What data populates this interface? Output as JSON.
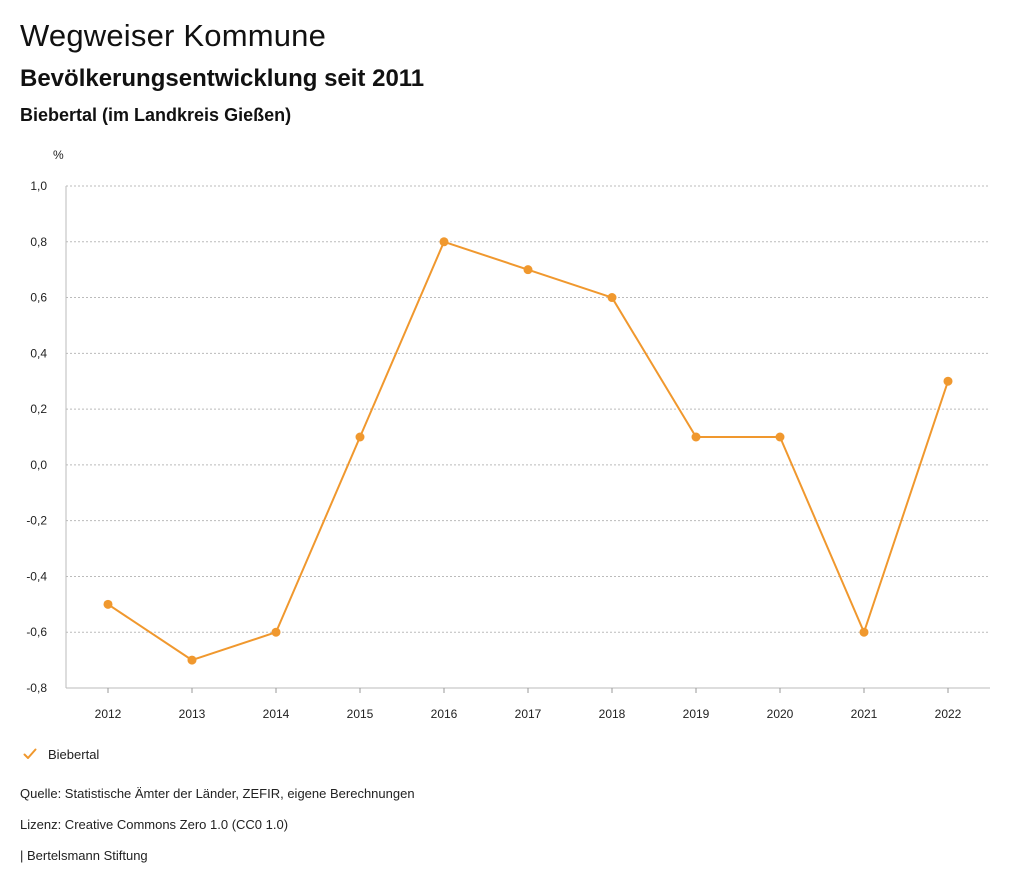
{
  "header": {
    "title": "Wegweiser Kommune",
    "subtitle": "Bevölkerungsentwicklung seit 2011",
    "region": "Biebertal (im Landkreis Gießen)"
  },
  "chart_data": {
    "type": "line",
    "title": "Bevölkerungsentwicklung seit 2011",
    "xlabel": "",
    "ylabel": "%",
    "x": [
      "2012",
      "2013",
      "2014",
      "2015",
      "2016",
      "2017",
      "2018",
      "2019",
      "2020",
      "2021",
      "2022"
    ],
    "series": [
      {
        "name": "Biebertal",
        "color": "#f0982e",
        "values": [
          -0.5,
          -0.7,
          -0.6,
          0.1,
          0.8,
          0.7,
          0.6,
          0.1,
          0.1,
          -0.6,
          0.3
        ]
      }
    ],
    "ylim": [
      -0.8,
      1.0
    ],
    "yticks": [
      1.0,
      0.8,
      0.6,
      0.4,
      0.2,
      0.0,
      -0.2,
      -0.4,
      -0.6,
      -0.8
    ],
    "ytick_labels": [
      "1,0",
      "0,8",
      "0,6",
      "0,4",
      "0,2",
      "0,0",
      "-0,2",
      "-0,4",
      "-0,6",
      "-0,8"
    ],
    "grid": true,
    "legend": "bottom-left"
  },
  "legend": {
    "label": "Biebertal",
    "icon": "check-icon"
  },
  "footer": {
    "source": "Quelle: Statistische Ämter der Länder, ZEFIR, eigene Berechnungen",
    "license": "Lizenz: Creative Commons Zero 1.0 (CC0 1.0)",
    "publisher": "| Bertelsmann Stiftung"
  },
  "colors": {
    "series": "#f0982e",
    "grid": "#bbbbbb",
    "text": "#222222"
  }
}
